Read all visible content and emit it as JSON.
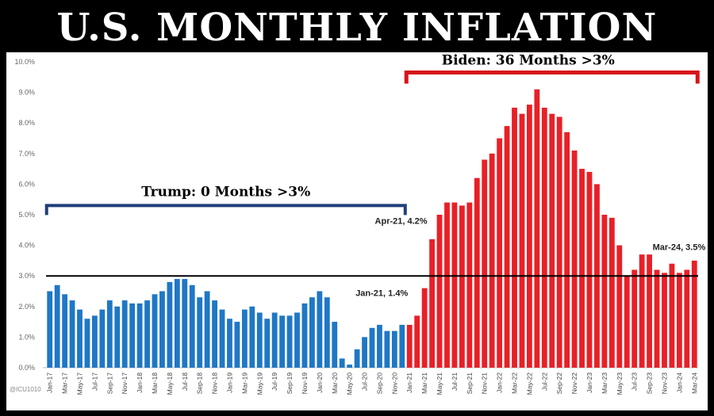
{
  "header": {
    "title": "U.S. MONTHLY INFLATION"
  },
  "watermark": "@ICU1010",
  "colors": {
    "trump": "#1f77c4",
    "biden": "#e82027",
    "trump_bracket": "#1f3f7a",
    "biden_bracket": "#d6141b",
    "threshold": "#000000"
  },
  "chart_data": {
    "type": "bar",
    "title": "U.S. MONTHLY INFLATION",
    "xlabel": "",
    "ylabel": "",
    "ylim": [
      0,
      10
    ],
    "y_ticks": [
      "0.0%",
      "1.0%",
      "2.0%",
      "3.0%",
      "4.0%",
      "5.0%",
      "6.0%",
      "7.0%",
      "8.0%",
      "9.0%",
      "10.0%"
    ],
    "threshold": 3.0,
    "x_tick_labels": [
      "Jan-17",
      "Mar-17",
      "May-17",
      "Jul-17",
      "Sep-17",
      "Nov-17",
      "Jan-18",
      "Mar-18",
      "May-18",
      "Jul-18",
      "Sep-18",
      "Nov-18",
      "Jan-19",
      "Mar-19",
      "May-19",
      "Jul-19",
      "Sep-19",
      "Nov-19",
      "Jan-20",
      "Mar-20",
      "May-20",
      "Jul-20",
      "Sep-20",
      "Nov-20",
      "Jan-21",
      "Mar-21",
      "May-21",
      "Jul-21",
      "Sep-21",
      "Nov-21",
      "Jan-22",
      "Mar-22",
      "May-22",
      "Jul-22",
      "Sep-22",
      "Nov-22",
      "Jan-23",
      "Mar-23",
      "May-23",
      "Jul-23",
      "Sep-23",
      "Nov-23",
      "Jan-24",
      "Mar-24"
    ],
    "series": [
      {
        "name": "Trump",
        "values": [
          2.5,
          2.7,
          2.4,
          2.2,
          1.9,
          1.6,
          1.7,
          1.9,
          2.2,
          2.0,
          2.2,
          2.1,
          2.1,
          2.2,
          2.4,
          2.5,
          2.8,
          2.9,
          2.9,
          2.7,
          2.3,
          2.5,
          2.2,
          1.9,
          1.6,
          1.5,
          1.9,
          2.0,
          1.8,
          1.6,
          1.8,
          1.7,
          1.7,
          1.8,
          2.1,
          2.3,
          2.5,
          2.3,
          1.5,
          0.3,
          0.1,
          0.6,
          1.0,
          1.3,
          1.4,
          1.2,
          1.2,
          1.4
        ]
      },
      {
        "name": "Biden",
        "values": [
          1.4,
          1.7,
          2.6,
          4.2,
          5.0,
          5.4,
          5.4,
          5.3,
          5.4,
          6.2,
          6.8,
          7.0,
          7.5,
          7.9,
          8.5,
          8.3,
          8.6,
          9.1,
          8.5,
          8.3,
          8.2,
          7.7,
          7.1,
          6.5,
          6.4,
          6.0,
          5.0,
          4.9,
          4.0,
          3.0,
          3.2,
          3.7,
          3.7,
          3.2,
          3.1,
          3.4,
          3.1,
          3.2,
          3.5
        ]
      }
    ],
    "annotations": {
      "trump_bracket": "Trump: 0 Months >3%",
      "biden_bracket": "Biden: 36 Months >3%",
      "apr21": "Apr-21, 4.2%",
      "jan21": "Jan-21, 1.4%",
      "mar24": "Mar-24, 3.5%"
    }
  }
}
